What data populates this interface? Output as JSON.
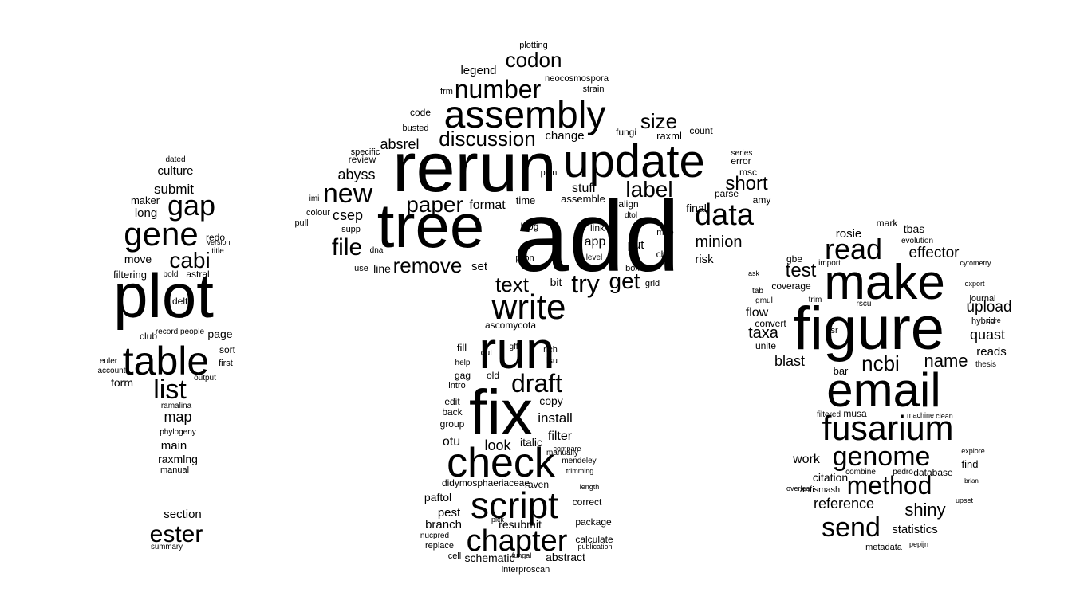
{
  "words": [
    {
      "text": "add"
    },
    {
      "text": "rerun"
    },
    {
      "text": "tree"
    },
    {
      "text": "update"
    },
    {
      "text": "assembly"
    },
    {
      "text": "run"
    },
    {
      "text": "fix"
    },
    {
      "text": "check"
    },
    {
      "text": "script"
    },
    {
      "text": "write"
    },
    {
      "text": "chapter"
    },
    {
      "text": "new"
    },
    {
      "text": "data"
    },
    {
      "text": "number"
    },
    {
      "text": "codon"
    },
    {
      "text": "discussion"
    },
    {
      "text": "paper"
    },
    {
      "text": "file"
    },
    {
      "text": "remove"
    },
    {
      "text": "draft"
    },
    {
      "text": "try"
    },
    {
      "text": "get"
    },
    {
      "text": "label"
    },
    {
      "text": "size"
    },
    {
      "text": "short"
    },
    {
      "text": "absrel"
    },
    {
      "text": "abyss"
    },
    {
      "text": "minion"
    },
    {
      "text": "text"
    },
    {
      "text": "legend"
    },
    {
      "text": "change"
    },
    {
      "text": "format"
    },
    {
      "text": "install"
    },
    {
      "text": "filter"
    },
    {
      "text": "look"
    },
    {
      "text": "italic"
    },
    {
      "text": "otu"
    },
    {
      "text": "pest"
    },
    {
      "text": "branch"
    },
    {
      "text": "resubmit"
    },
    {
      "text": "package"
    },
    {
      "text": "calculate"
    },
    {
      "text": "schematic"
    },
    {
      "text": "abstract"
    },
    {
      "text": "paftol"
    },
    {
      "text": "csep"
    },
    {
      "text": "stuff"
    },
    {
      "text": "assemble"
    },
    {
      "text": "final"
    },
    {
      "text": "risk"
    },
    {
      "text": "app"
    },
    {
      "text": "put"
    },
    {
      "text": "blog"
    },
    {
      "text": "pilon"
    },
    {
      "text": "set"
    },
    {
      "text": "line"
    },
    {
      "text": "bit"
    },
    {
      "text": "copy"
    },
    {
      "text": "fill"
    },
    {
      "text": "cut"
    },
    {
      "text": "gff"
    },
    {
      "text": "lsu"
    },
    {
      "text": "gag"
    },
    {
      "text": "intro"
    },
    {
      "text": "back"
    },
    {
      "text": "edit"
    },
    {
      "text": "group"
    },
    {
      "text": "ascomycota"
    },
    {
      "text": "neocosmospora"
    },
    {
      "text": "plotting"
    },
    {
      "text": "strain"
    },
    {
      "text": "fungi"
    },
    {
      "text": "raxml"
    },
    {
      "text": "count"
    },
    {
      "text": "error"
    },
    {
      "text": "series"
    },
    {
      "text": "msc"
    },
    {
      "text": "amy"
    },
    {
      "text": "parse"
    },
    {
      "text": "review"
    },
    {
      "text": "specific"
    },
    {
      "text": "code"
    },
    {
      "text": "busted"
    },
    {
      "text": "frm"
    },
    {
      "text": "time"
    },
    {
      "text": "plan"
    },
    {
      "text": "link"
    },
    {
      "text": "align"
    },
    {
      "text": "dtol"
    },
    {
      "text": "mhe"
    },
    {
      "text": "cbs"
    },
    {
      "text": "box"
    },
    {
      "text": "grid"
    },
    {
      "text": "level"
    },
    {
      "text": "supp"
    },
    {
      "text": "dna"
    },
    {
      "text": "use"
    },
    {
      "text": "pull"
    },
    {
      "text": "colour"
    },
    {
      "text": "imi"
    },
    {
      "text": "rich"
    },
    {
      "text": "old"
    },
    {
      "text": "help"
    },
    {
      "text": "manually"
    },
    {
      "text": "compare"
    },
    {
      "text": "mendeley"
    },
    {
      "text": "trimming"
    },
    {
      "text": "didymosphaeriaceae"
    },
    {
      "text": "raven"
    },
    {
      "text": "correct"
    },
    {
      "text": "length"
    },
    {
      "text": "nucpred"
    },
    {
      "text": "replace"
    },
    {
      "text": "cell"
    },
    {
      "text": "pick"
    },
    {
      "text": "fungal"
    },
    {
      "text": "interproscan"
    },
    {
      "text": "publication"
    },
    {
      "text": "plot"
    },
    {
      "text": "table"
    },
    {
      "text": "gene"
    },
    {
      "text": "gap"
    },
    {
      "text": "cabi"
    },
    {
      "text": "list"
    },
    {
      "text": "map"
    },
    {
      "text": "ester"
    },
    {
      "text": "submit"
    },
    {
      "text": "culture"
    },
    {
      "text": "long"
    },
    {
      "text": "maker"
    },
    {
      "text": "move"
    },
    {
      "text": "filtering"
    },
    {
      "text": "delta"
    },
    {
      "text": "astral"
    },
    {
      "text": "redo"
    },
    {
      "text": "page"
    },
    {
      "text": "sort"
    },
    {
      "text": "first"
    },
    {
      "text": "output"
    },
    {
      "text": "club"
    },
    {
      "text": "record"
    },
    {
      "text": "people"
    },
    {
      "text": "form"
    },
    {
      "text": "euler"
    },
    {
      "text": "account"
    },
    {
      "text": "ramalina"
    },
    {
      "text": "phylogeny"
    },
    {
      "text": "main"
    },
    {
      "text": "raxmlng"
    },
    {
      "text": "manual"
    },
    {
      "text": "section"
    },
    {
      "text": "summary"
    },
    {
      "text": "dated"
    },
    {
      "text": "bold"
    },
    {
      "text": "title"
    },
    {
      "text": "version"
    },
    {
      "text": "figure"
    },
    {
      "text": "make"
    },
    {
      "text": "email"
    },
    {
      "text": "fusarium"
    },
    {
      "text": "read"
    },
    {
      "text": "genome"
    },
    {
      "text": "method"
    },
    {
      "text": "send"
    },
    {
      "text": "ncbi"
    },
    {
      "text": "test"
    },
    {
      "text": "name"
    },
    {
      "text": "taxa"
    },
    {
      "text": "blast"
    },
    {
      "text": "shiny"
    },
    {
      "text": "reference"
    },
    {
      "text": "upload"
    },
    {
      "text": "quast"
    },
    {
      "text": "effector"
    },
    {
      "text": "rosie"
    },
    {
      "text": "work"
    },
    {
      "text": "statistics"
    },
    {
      "text": "reads"
    },
    {
      "text": "mark"
    },
    {
      "text": "tbas"
    },
    {
      "text": "evolution"
    },
    {
      "text": "flow"
    },
    {
      "text": "coverage"
    },
    {
      "text": "gbe"
    },
    {
      "text": "hybrid"
    },
    {
      "text": "journal"
    },
    {
      "text": "cytometry"
    },
    {
      "text": "citation"
    },
    {
      "text": "find"
    },
    {
      "text": "database"
    },
    {
      "text": "musa"
    },
    {
      "text": "bar"
    },
    {
      "text": "unite"
    },
    {
      "text": "convert"
    },
    {
      "text": "thesis"
    },
    {
      "text": "metadata"
    },
    {
      "text": "pepijn"
    },
    {
      "text": "combine"
    },
    {
      "text": "pedro"
    },
    {
      "text": "antismash"
    },
    {
      "text": "filtered"
    },
    {
      "text": "clean"
    },
    {
      "text": "machine"
    },
    {
      "text": "overleaf"
    },
    {
      "text": "explore"
    },
    {
      "text": "export"
    },
    {
      "text": "gmul"
    },
    {
      "text": "import"
    },
    {
      "text": "asr"
    },
    {
      "text": "trim"
    },
    {
      "text": "ask"
    },
    {
      "text": "tab"
    },
    {
      "text": "rscu"
    },
    {
      "text": "core"
    },
    {
      "text": "brian"
    },
    {
      "text": "upset"
    }
  ]
}
